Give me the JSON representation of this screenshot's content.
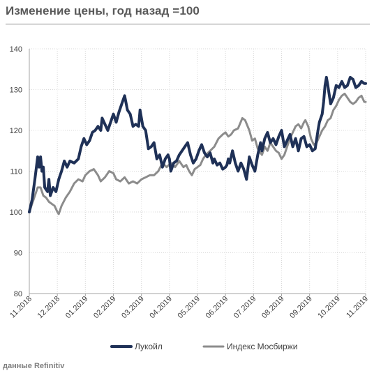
{
  "title": "Изменение цены, год назад =100",
  "source": "данные Refinitiv",
  "chart_data": {
    "type": "line",
    "ylim": [
      80,
      140
    ],
    "yticks": [
      80,
      90,
      100,
      110,
      120,
      130,
      140
    ],
    "x_tick_labels": [
      "11.2018",
      "12.2018",
      "01.2019",
      "02.2019",
      "03.2019",
      "04.2019",
      "05.2019",
      "06.2019",
      "07.2019",
      "08.2019",
      "09.2019",
      "10.2019",
      "11.2019"
    ],
    "grid": true,
    "legend_position": "bottom",
    "series": [
      {
        "name": "Лукойл",
        "color": "#1f3157",
        "points": [
          [
            0,
            100
          ],
          [
            0.1,
            103
          ],
          [
            0.2,
            108
          ],
          [
            0.3,
            113.5
          ],
          [
            0.35,
            111
          ],
          [
            0.4,
            113.5
          ],
          [
            0.45,
            110
          ],
          [
            0.5,
            111
          ],
          [
            0.55,
            106
          ],
          [
            0.65,
            105
          ],
          [
            0.7,
            108
          ],
          [
            0.75,
            104
          ],
          [
            0.85,
            106
          ],
          [
            0.95,
            105
          ],
          [
            1.05,
            108
          ],
          [
            1.15,
            110
          ],
          [
            1.25,
            112.5
          ],
          [
            1.35,
            111
          ],
          [
            1.45,
            112.5
          ],
          [
            1.6,
            112
          ],
          [
            1.75,
            113
          ],
          [
            1.85,
            116
          ],
          [
            1.95,
            118
          ],
          [
            2.05,
            116.5
          ],
          [
            2.15,
            117.5
          ],
          [
            2.25,
            119.5
          ],
          [
            2.35,
            120
          ],
          [
            2.45,
            121
          ],
          [
            2.55,
            120
          ],
          [
            2.6,
            123
          ],
          [
            2.7,
            121.5
          ],
          [
            2.8,
            120
          ],
          [
            2.9,
            122
          ],
          [
            3.0,
            124
          ],
          [
            3.1,
            122
          ],
          [
            3.2,
            124.5
          ],
          [
            3.3,
            126.5
          ],
          [
            3.4,
            128.5
          ],
          [
            3.5,
            125
          ],
          [
            3.6,
            124
          ],
          [
            3.7,
            121
          ],
          [
            3.8,
            121.5
          ],
          [
            3.9,
            121
          ],
          [
            3.95,
            125
          ],
          [
            4.05,
            121
          ],
          [
            4.15,
            120
          ],
          [
            4.25,
            115.5
          ],
          [
            4.35,
            116
          ],
          [
            4.45,
            117
          ],
          [
            4.55,
            113
          ],
          [
            4.65,
            114
          ],
          [
            4.75,
            111
          ],
          [
            4.85,
            113
          ],
          [
            4.95,
            114
          ],
          [
            5.0,
            113
          ],
          [
            5.05,
            110
          ],
          [
            5.15,
            112
          ],
          [
            5.25,
            112.5
          ],
          [
            5.35,
            114
          ],
          [
            5.45,
            115
          ],
          [
            5.55,
            116
          ],
          [
            5.65,
            117
          ],
          [
            5.75,
            114
          ],
          [
            5.85,
            112
          ],
          [
            5.95,
            113
          ],
          [
            6.05,
            115
          ],
          [
            6.15,
            116.5
          ],
          [
            6.25,
            114.5
          ],
          [
            6.35,
            113.5
          ],
          [
            6.45,
            114.5
          ],
          [
            6.55,
            112
          ],
          [
            6.6,
            113
          ],
          [
            6.7,
            111.5
          ],
          [
            6.8,
            112
          ],
          [
            6.9,
            110.5
          ],
          [
            7.0,
            111
          ],
          [
            7.05,
            111.5
          ],
          [
            7.1,
            113
          ],
          [
            7.15,
            112
          ],
          [
            7.25,
            115
          ],
          [
            7.35,
            112
          ],
          [
            7.45,
            110
          ],
          [
            7.55,
            112
          ],
          [
            7.65,
            110.5
          ],
          [
            7.75,
            108
          ],
          [
            7.85,
            113.5
          ],
          [
            7.95,
            111.5
          ],
          [
            8.05,
            110
          ],
          [
            8.15,
            114
          ],
          [
            8.25,
            117
          ],
          [
            8.3,
            115
          ],
          [
            8.4,
            118
          ],
          [
            8.5,
            119.5
          ],
          [
            8.6,
            117
          ],
          [
            8.7,
            118
          ],
          [
            8.8,
            116.5
          ],
          [
            8.9,
            118.5
          ],
          [
            9.0,
            120
          ],
          [
            9.1,
            116
          ],
          [
            9.2,
            117.5
          ],
          [
            9.3,
            119
          ],
          [
            9.4,
            116
          ],
          [
            9.5,
            118
          ],
          [
            9.6,
            115
          ],
          [
            9.7,
            118
          ],
          [
            9.8,
            118.5
          ],
          [
            9.9,
            116
          ],
          [
            10.0,
            116.5
          ],
          [
            10.1,
            115
          ],
          [
            10.2,
            115.5
          ],
          [
            10.3,
            120
          ],
          [
            10.35,
            122
          ],
          [
            10.45,
            124
          ],
          [
            10.5,
            127
          ],
          [
            10.55,
            131
          ],
          [
            10.6,
            133
          ],
          [
            10.65,
            131
          ],
          [
            10.75,
            126.5
          ],
          [
            10.85,
            128
          ],
          [
            10.95,
            131
          ],
          [
            11.05,
            130.5
          ],
          [
            11.15,
            132
          ],
          [
            11.25,
            130.5
          ],
          [
            11.35,
            131
          ],
          [
            11.45,
            133
          ],
          [
            11.55,
            132.5
          ],
          [
            11.65,
            130.5
          ],
          [
            11.75,
            131
          ],
          [
            11.85,
            132
          ],
          [
            11.95,
            131.5
          ],
          [
            12.0,
            131.5
          ]
        ]
      },
      {
        "name": "Индекс Мосбиржи",
        "color": "#8c8c8c",
        "points": [
          [
            0,
            100
          ],
          [
            0.1,
            102
          ],
          [
            0.2,
            104
          ],
          [
            0.3,
            106
          ],
          [
            0.4,
            106
          ],
          [
            0.5,
            104
          ],
          [
            0.6,
            103.5
          ],
          [
            0.7,
            102.5
          ],
          [
            0.8,
            102
          ],
          [
            0.9,
            101.5
          ],
          [
            1.0,
            100
          ],
          [
            1.05,
            99.5
          ],
          [
            1.15,
            101.5
          ],
          [
            1.3,
            103.5
          ],
          [
            1.45,
            105
          ],
          [
            1.6,
            107
          ],
          [
            1.75,
            108
          ],
          [
            1.9,
            107.5
          ],
          [
            2.0,
            109
          ],
          [
            2.15,
            110
          ],
          [
            2.3,
            110.5
          ],
          [
            2.45,
            109
          ],
          [
            2.55,
            107.5
          ],
          [
            2.7,
            108.5
          ],
          [
            2.85,
            110
          ],
          [
            3.0,
            109.5
          ],
          [
            3.1,
            108
          ],
          [
            3.25,
            107.5
          ],
          [
            3.4,
            108.5
          ],
          [
            3.55,
            107
          ],
          [
            3.7,
            107.5
          ],
          [
            3.85,
            107
          ],
          [
            4.0,
            108
          ],
          [
            4.15,
            108.5
          ],
          [
            4.3,
            109
          ],
          [
            4.45,
            109
          ],
          [
            4.6,
            110
          ],
          [
            4.75,
            112
          ],
          [
            4.9,
            111
          ],
          [
            5.05,
            112
          ],
          [
            5.2,
            111
          ],
          [
            5.35,
            112.5
          ],
          [
            5.5,
            111
          ],
          [
            5.6,
            111.5
          ],
          [
            5.7,
            110
          ],
          [
            5.8,
            109
          ],
          [
            5.9,
            110.5
          ],
          [
            6.0,
            111
          ],
          [
            6.1,
            111.5
          ],
          [
            6.2,
            113
          ],
          [
            6.3,
            114
          ],
          [
            6.45,
            115
          ],
          [
            6.6,
            116
          ],
          [
            6.75,
            118
          ],
          [
            6.9,
            119
          ],
          [
            7.0,
            119.5
          ],
          [
            7.1,
            118.5
          ],
          [
            7.2,
            119
          ],
          [
            7.3,
            120
          ],
          [
            7.45,
            120.5
          ],
          [
            7.6,
            123
          ],
          [
            7.7,
            122.5
          ],
          [
            7.85,
            120
          ],
          [
            7.95,
            117.5
          ],
          [
            8.05,
            118
          ],
          [
            8.15,
            115.5
          ],
          [
            8.3,
            114
          ],
          [
            8.4,
            116
          ],
          [
            8.5,
            115
          ],
          [
            8.6,
            117
          ],
          [
            8.7,
            116
          ],
          [
            8.8,
            115
          ],
          [
            8.9,
            114.5
          ],
          [
            9.0,
            113
          ],
          [
            9.1,
            114
          ],
          [
            9.2,
            116
          ],
          [
            9.3,
            118
          ],
          [
            9.4,
            119.5
          ],
          [
            9.5,
            121
          ],
          [
            9.6,
            121.5
          ],
          [
            9.7,
            120.5
          ],
          [
            9.8,
            122
          ],
          [
            9.85,
            122.5
          ],
          [
            9.95,
            121
          ],
          [
            10.05,
            118
          ],
          [
            10.15,
            116.5
          ],
          [
            10.25,
            117
          ],
          [
            10.35,
            118.5
          ],
          [
            10.45,
            120
          ],
          [
            10.55,
            121
          ],
          [
            10.65,
            122.5
          ],
          [
            10.75,
            123
          ],
          [
            10.85,
            125
          ],
          [
            10.95,
            126
          ],
          [
            11.05,
            127.5
          ],
          [
            11.15,
            128.5
          ],
          [
            11.25,
            129
          ],
          [
            11.35,
            128
          ],
          [
            11.45,
            127
          ],
          [
            11.55,
            126.5
          ],
          [
            11.65,
            127
          ],
          [
            11.75,
            128
          ],
          [
            11.85,
            128.5
          ],
          [
            11.95,
            127
          ],
          [
            12.0,
            127
          ]
        ]
      }
    ]
  }
}
